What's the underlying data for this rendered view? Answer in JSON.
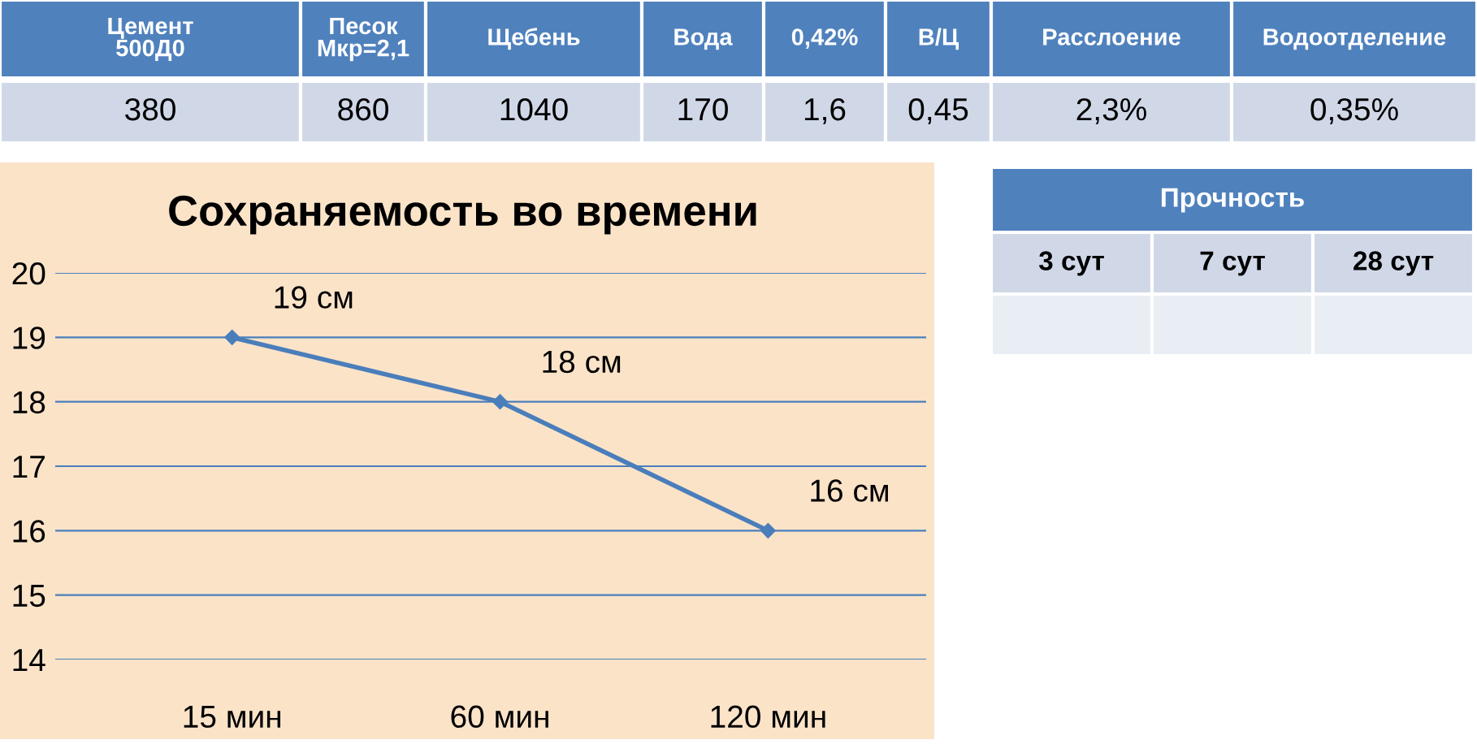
{
  "chart_data": [
    {
      "type": "other",
      "categories": [
        "Цемент\n500Д0",
        "Песок\nМкр=2,1",
        "Щебень",
        "Вода",
        "0,42%",
        "В/Ц",
        "Расслоение",
        "Водоотделение"
      ],
      "value_labels": [
        "380",
        "860",
        "1040",
        "170",
        "1,6",
        "0,45",
        "2,3%",
        "0,35%"
      ]
    },
    {
      "type": "line",
      "title": "Сохраняемость во времени",
      "categories": [
        "15 мин",
        "60 мин",
        "120 мин"
      ],
      "series": [
        {
          "color": "#4a7ebb",
          "values": [
            19,
            18,
            16
          ]
        }
      ],
      "value_labels": [
        "19 см",
        "18 см",
        "16 см"
      ],
      "ylim": [
        14,
        20
      ],
      "yticks": [
        14,
        15,
        16,
        17,
        18,
        19,
        20
      ],
      "grid": "y",
      "marker": "diamond",
      "line_style": "solid"
    },
    {
      "type": "other",
      "title": "Прочность",
      "categories": [
        "3 сут",
        "7 сут",
        "28 сут"
      ],
      "values": [
        null,
        null,
        null
      ]
    }
  ]
}
